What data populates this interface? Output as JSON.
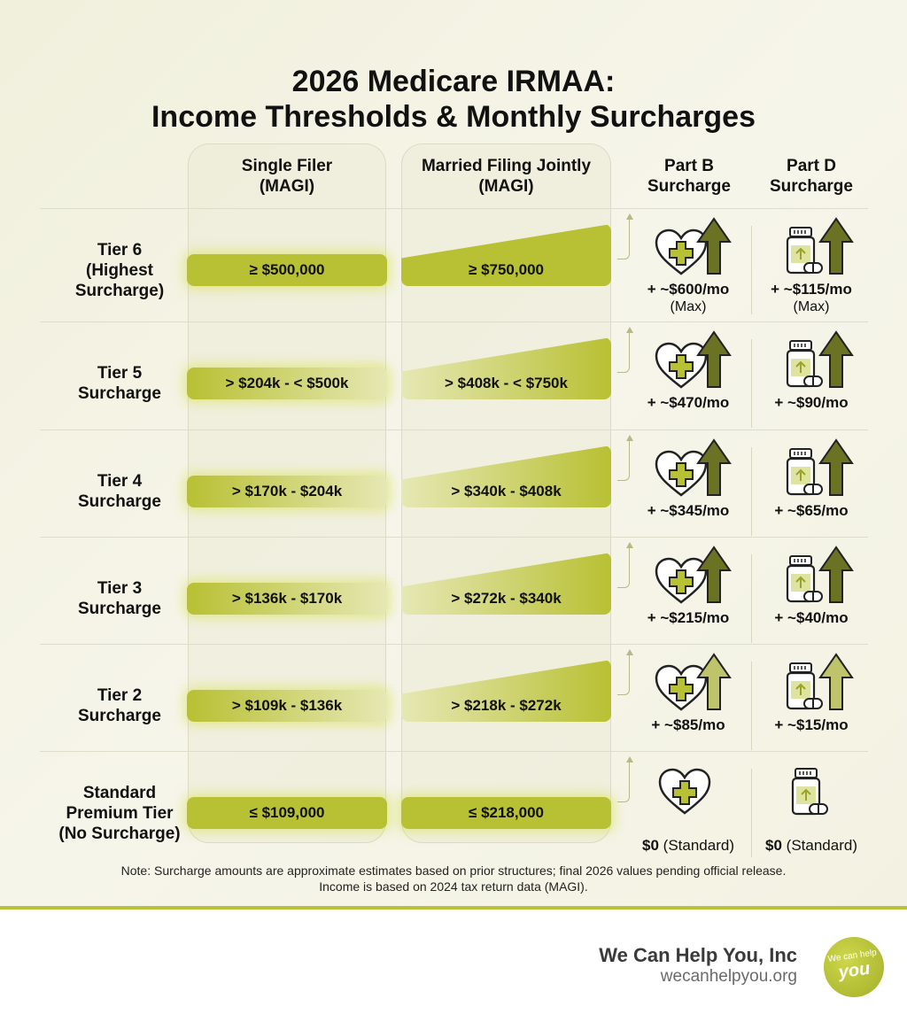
{
  "title_line1": "2026 Medicare IRMAA:",
  "title_line2": "Income Thresholds & Monthly Surcharges",
  "headers": {
    "single": [
      "Single Filer",
      "(MAGI)"
    ],
    "married": [
      "Married Filing Jointly",
      "(MAGI)"
    ],
    "partb": [
      "Part B",
      "Surcharge"
    ],
    "partd": [
      "Part D",
      "Surcharge"
    ]
  },
  "colors": {
    "pill": "#b8c033",
    "arrow_dark": "#6c7224",
    "arrow_light": "#bfc46a",
    "accent": "#b9c23a"
  },
  "rows": [
    {
      "label": [
        "Tier 6",
        "(Highest",
        "Surcharge)"
      ],
      "single": "≥ $500,000",
      "married": "≥ $750,000",
      "partb": "+ ~$600/mo",
      "partb_sub": "(Max)",
      "partd": "+ ~$115/mo",
      "partd_sub": "(Max)",
      "arrow": "dark",
      "icons": [
        "heart-plus-icon",
        "arrow-up-icon",
        "pill-bottle-icon",
        "arrow-up-icon"
      ]
    },
    {
      "label": [
        "Tier 5",
        "Surcharge"
      ],
      "single": "> $204k - < $500k",
      "married": "> $408k - < $750k",
      "partb": "+ ~$470/mo",
      "partd": "+ ~$90/mo",
      "arrow": "dark"
    },
    {
      "label": [
        "Tier 4",
        "Surcharge"
      ],
      "single": "> $170k - $204k",
      "married": "> $340k - $408k",
      "partb": "+ ~$345/mo",
      "partd": "+ ~$65/mo",
      "arrow": "dark"
    },
    {
      "label": [
        "Tier 3",
        "Surcharge"
      ],
      "single": "> $136k - $170k",
      "married": "> $272k - $340k",
      "partb": "+ ~$215/mo",
      "partd": "+ ~$40/mo",
      "arrow": "dark"
    },
    {
      "label": [
        "Tier 2",
        "Surcharge"
      ],
      "single": "> $109k - $136k",
      "married": "> $218k - $272k",
      "partb": "+ ~$85/mo",
      "partd": "+ ~$15/mo",
      "arrow": "light"
    },
    {
      "label": [
        "Standard",
        "Premium Tier",
        "(No Surcharge)"
      ],
      "single": "≤ $109,000",
      "married": "≤ $218,000",
      "partb": "$0",
      "partb_sub": "(Standard)",
      "partd": "$0",
      "partd_sub": "(Standard)",
      "arrow": "none"
    }
  ],
  "note": "Note: Surcharge amounts are approximate estimates based on prior structures; final 2026 values pending official release. Income is based on 2024 tax return data (MAGI).",
  "brand": {
    "name": "We Can Help You, Inc",
    "url": "wecanhelpyou.org",
    "logo_text": [
      "We can help",
      "you"
    ]
  }
}
